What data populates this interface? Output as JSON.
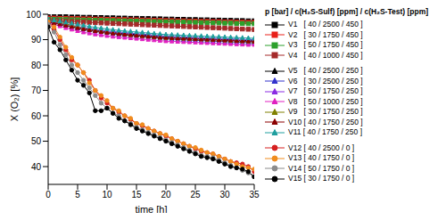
{
  "chart_data": {
    "type": "line",
    "x_label": "time [h]",
    "y_label": "X (O₂) [%]",
    "legend_title": "p [bar] / c(H₂S-Sulf) [ppm] / c(H₂S-Test) [ppm]",
    "legend": "right",
    "grid": false,
    "x": [
      0,
      1,
      2,
      3,
      4,
      5,
      6,
      7,
      8,
      9,
      10,
      11,
      12,
      13,
      14,
      15,
      16,
      17,
      18,
      19,
      20,
      21,
      22,
      23,
      24,
      25,
      26,
      27,
      28,
      29,
      30,
      31,
      32,
      33,
      34,
      35
    ],
    "xlim": [
      0,
      35
    ],
    "xticks": [
      0,
      5,
      10,
      15,
      20,
      25,
      30,
      35
    ],
    "ylim": [
      33,
      100
    ],
    "yticks": [
      40,
      50,
      60,
      70,
      80,
      90,
      100
    ],
    "series": [
      {
        "name": "V1   [ 40 / 2500 / 450 ]",
        "color": "#000000",
        "marker": "square",
        "values": [
          99,
          99,
          99,
          99,
          98.9,
          98.9,
          98.8,
          98.8,
          98.7,
          98.7,
          98.6,
          98.6,
          98.5,
          98.5,
          98.4,
          98.4,
          98.3,
          98.3,
          98.2,
          98.2,
          98.1,
          98.1,
          98,
          98,
          97.9,
          97.9,
          97.8,
          97.8,
          97.7,
          97.7,
          97.6,
          97.6,
          97.5,
          97.5,
          97.4,
          97.4
        ]
      },
      {
        "name": "V2   [ 30 / 1750 / 450 ]",
        "color": "#e8201a",
        "marker": "square",
        "values": [
          98.5,
          98.5,
          98.4,
          98.4,
          98.3,
          98.3,
          98.2,
          98.2,
          98.1,
          98.1,
          98,
          98,
          97.9,
          97.9,
          97.8,
          97.8,
          97.7,
          97.7,
          97.6,
          97.6,
          97.5,
          97.5,
          97.4,
          97.4,
          97.3,
          97.3,
          97.2,
          97.2,
          97.1,
          97.1,
          97,
          97,
          96.9,
          96.9,
          96.8,
          96.8
        ]
      },
      {
        "name": "V3   [ 50 / 1750 / 450 ]",
        "color": "#2ca02c",
        "marker": "square",
        "values": [
          98,
          98,
          97.9,
          97.9,
          97.8,
          97.8,
          97.7,
          97.7,
          97.6,
          97.6,
          97.5,
          97.5,
          97.4,
          97.4,
          97.3,
          97.3,
          97.2,
          97.2,
          97.1,
          97.1,
          97,
          97,
          96.9,
          96.9,
          96.8,
          96.8,
          96.7,
          96.7,
          96.6,
          96.6,
          96.5,
          96.5,
          96.4,
          96.4,
          96.3,
          96.3
        ]
      },
      {
        "name": "V4   [ 40 / 1000 / 450 ]",
        "color": "#a52a2a",
        "marker": "square",
        "values": [
          97.5,
          97.4,
          97.3,
          97.2,
          97.1,
          97,
          96.9,
          96.8,
          96.7,
          96.6,
          96.5,
          96.4,
          96.3,
          96.2,
          96.1,
          96,
          95.9,
          95.8,
          95.7,
          95.6,
          95.5,
          95.4,
          95.3,
          95.2,
          95.1,
          95,
          94.9,
          94.8,
          94.7,
          94.6,
          94.5,
          94.4,
          94.3,
          94.2,
          94.1,
          94
        ]
      },
      {
        "name": "V5   [ 40 / 2500 / 250 ]",
        "color": "#000000",
        "marker": "triangle",
        "values": [
          97,
          96.5,
          96,
          95.5,
          95,
          94.5,
          94.2,
          93.9,
          93.6,
          93.3,
          93,
          92.8,
          92.6,
          92.4,
          92.2,
          92,
          91.8,
          91.6,
          91.4,
          91.2,
          91,
          90.9,
          90.8,
          90.7,
          90.6,
          90.5,
          90.4,
          90.3,
          90.2,
          90.1,
          90,
          89.9,
          89.8,
          89.7,
          89.6,
          89.5
        ]
      },
      {
        "name": "V6   [ 30 / 2500 / 250 ]",
        "color": "#3333cc",
        "marker": "triangle",
        "values": [
          97.5,
          97,
          96.3,
          95.7,
          95,
          94.5,
          94,
          93.6,
          93.2,
          92.9,
          92.6,
          92.3,
          92,
          91.8,
          91.6,
          91.4,
          91.2,
          91,
          90.8,
          90.6,
          90.4,
          90.2,
          90,
          89.9,
          89.8,
          89.7,
          89.6,
          89.5,
          89.4,
          89.3,
          89.2,
          89.1,
          89,
          88.9,
          88.8,
          88.7
        ]
      },
      {
        "name": "V7   [ 50 / 1750 / 250 ]",
        "color": "#8a2be2",
        "marker": "triangle",
        "values": [
          97,
          96.8,
          96.4,
          96,
          95.6,
          95.2,
          94.8,
          94.4,
          94,
          93.7,
          93.4,
          93.2,
          93,
          92.8,
          92.6,
          92.4,
          92.2,
          92,
          91.8,
          91.6,
          91.4,
          91.3,
          91.2,
          91.1,
          91,
          90.9,
          90.8,
          90.7,
          90.6,
          90.5,
          90.4,
          90.3,
          90.2,
          90.1,
          90,
          90
        ]
      },
      {
        "name": "V8   [ 50 / 1000 / 250 ]",
        "color": "#e020c0",
        "marker": "triangle",
        "values": [
          96.5,
          96,
          95.3,
          94.6,
          94,
          93.4,
          92.9,
          92.5,
          92.1,
          91.8,
          91.5,
          91.2,
          91,
          90.8,
          90.6,
          90.4,
          90.2,
          90,
          89.8,
          89.6,
          89.4,
          89.3,
          89.2,
          89.1,
          89,
          88.9,
          88.8,
          88.7,
          88.6,
          88.5,
          88.4,
          88.3,
          88.2,
          88.1,
          88,
          88
        ]
      },
      {
        "name": "V9   [ 30 / 1750 / 250 ]",
        "color": "#808000",
        "marker": "triangle",
        "values": [
          98,
          97.4,
          96.8,
          96.2,
          95.6,
          95,
          94.5,
          94,
          93.6,
          93.2,
          92.9,
          92.6,
          92.3,
          92,
          91.8,
          91.6,
          91.4,
          91.2,
          91,
          90.8,
          90.7,
          90.6,
          90.5,
          90.4,
          90.3,
          90.2,
          90.1,
          90,
          89.9,
          89.8,
          89.7,
          89.6,
          89.5,
          89.4,
          89.3,
          89.2
        ]
      },
      {
        "name": "V10 [ 40 / 1750 / 250 ]",
        "color": "#8b0000",
        "marker": "triangle",
        "values": [
          97,
          96.6,
          96.1,
          95.6,
          95.1,
          94.6,
          94.2,
          93.8,
          93.4,
          93.1,
          92.8,
          92.5,
          92.3,
          92.1,
          91.9,
          91.7,
          91.5,
          91.3,
          91.1,
          90.9,
          90.8,
          90.7,
          90.6,
          90.5,
          90.4,
          90.3,
          90.2,
          90.1,
          90,
          89.9,
          89.8,
          89.7,
          89.6,
          89.5,
          89.4,
          89.3
        ]
      },
      {
        "name": "V11 [ 40 / 1750 / 250 ]",
        "color": "#1f9e9e",
        "marker": "triangle",
        "values": [
          98,
          97.6,
          97.2,
          96.8,
          96.4,
          96,
          95.6,
          95.2,
          94.8,
          94.5,
          94.2,
          93.9,
          93.6,
          93.4,
          93.2,
          93,
          92.8,
          92.6,
          92.4,
          92.2,
          92,
          91.9,
          91.8,
          91.7,
          91.6,
          91.5,
          91.4,
          91.3,
          91.2,
          91.1,
          91,
          90.9,
          90.8,
          90.7,
          90.6,
          90.5
        ]
      },
      {
        "name": "V12 [ 40 / 2500 / 0 ]",
        "color": "#d62020",
        "marker": "circle",
        "values": [
          97,
          94,
          90,
          86,
          82,
          80,
          77,
          74,
          70,
          67,
          65,
          63,
          61.5,
          60,
          58.5,
          57,
          56,
          55,
          54,
          53,
          52,
          51,
          50,
          49,
          48,
          47,
          46,
          45.5,
          45,
          44,
          43,
          42,
          41.5,
          41,
          40,
          38
        ]
      },
      {
        "name": "V13 [ 40 / 1750 / 0 ]",
        "color": "#f08c1e",
        "marker": "circle",
        "values": [
          97,
          95,
          91,
          87,
          83,
          80,
          77,
          73,
          70,
          68,
          66,
          63,
          62,
          60,
          59,
          57,
          56.5,
          55,
          54,
          53,
          52.5,
          51,
          50,
          49,
          48,
          47.5,
          46.5,
          45.5,
          45,
          44,
          43,
          42,
          41,
          40,
          39.5,
          39
        ]
      },
      {
        "name": "V14 [ 50 / 1750 / 0 ]",
        "color": "#8c8c8c",
        "marker": "circle",
        "values": [
          96,
          93,
          88,
          84,
          80,
          77,
          74,
          71,
          68,
          65,
          63,
          61,
          60,
          58,
          57,
          55.5,
          54.5,
          53.5,
          52.5,
          51.5,
          50.5,
          49.5,
          48.5,
          47.5,
          46.5,
          45.5,
          44.5,
          44,
          43.5,
          42.5,
          41.5,
          40.5,
          39.5,
          38.5,
          37.5,
          36
        ]
      },
      {
        "name": "V15 [ 30 / 1750 / 0 ]",
        "color": "#000000",
        "marker": "circle",
        "values": [
          95,
          89,
          86,
          82,
          78,
          74,
          72,
          69,
          62,
          62,
          63,
          61,
          59,
          58,
          56.5,
          55,
          54,
          53,
          52,
          51,
          50,
          49,
          48,
          47,
          46,
          45,
          44,
          43.5,
          43,
          42,
          41,
          40,
          39.5,
          39,
          38,
          36
        ]
      }
    ]
  }
}
